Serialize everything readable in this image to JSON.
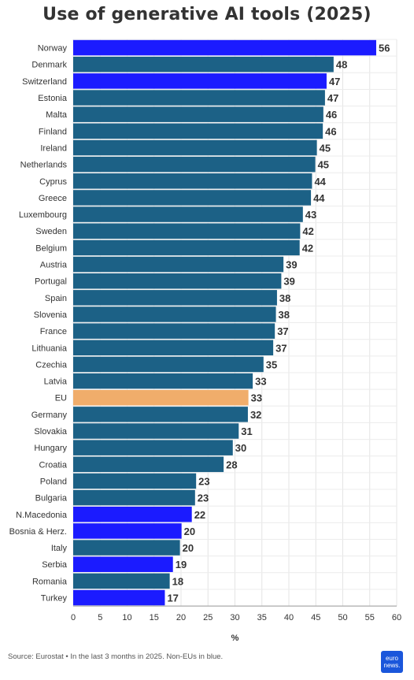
{
  "chart_data": {
    "type": "bar",
    "orientation": "horizontal",
    "title": "Use of generative AI tools (2025)",
    "xlabel": "%",
    "xlim": [
      0,
      60
    ],
    "xticks": [
      0,
      5,
      10,
      15,
      20,
      25,
      30,
      35,
      40,
      45,
      50,
      55,
      60
    ],
    "grid": true,
    "categories": [
      "Norway",
      "Denmark",
      "Switzerland",
      "Estonia",
      "Malta",
      "Finland",
      "Ireland",
      "Netherlands",
      "Cyprus",
      "Greece",
      "Luxembourg",
      "Sweden",
      "Belgium",
      "Austria",
      "Portugal",
      "Spain",
      "Slovenia",
      "France",
      "Lithuania",
      "Czechia",
      "Latvia",
      "EU",
      "Germany",
      "Slovakia",
      "Hungary",
      "Croatia",
      "Poland",
      "Bulgaria",
      "N.Macedonia",
      "Bosnia & Herz.",
      "Italy",
      "Serbia",
      "Romania",
      "Turkey"
    ],
    "values": [
      56.2,
      48.3,
      47.0,
      46.7,
      46.4,
      46.3,
      45.2,
      44.9,
      44.3,
      44.1,
      42.6,
      42.1,
      42.0,
      39.0,
      38.6,
      37.8,
      37.6,
      37.4,
      37.1,
      35.3,
      33.3,
      32.5,
      32.4,
      30.7,
      29.6,
      27.9,
      22.8,
      22.6,
      22.0,
      20.1,
      19.8,
      18.5,
      17.9,
      17.0
    ],
    "labels": [
      "56",
      "48",
      "47",
      "47",
      "46",
      "46",
      "45",
      "45",
      "44",
      "44",
      "43",
      "42",
      "42",
      "39",
      "39",
      "38",
      "38",
      "37",
      "37",
      "35",
      "33",
      "33",
      "32",
      "31",
      "30",
      "28",
      "23",
      "23",
      "22",
      "20",
      "20",
      "19",
      "18",
      "17"
    ],
    "colors": {
      "eu_member": "#1c6186",
      "non_eu": "#1b1bff",
      "eu_average": "#f0ad6b"
    },
    "bar_groups": [
      "non_eu",
      "eu_member",
      "non_eu",
      "eu_member",
      "eu_member",
      "eu_member",
      "eu_member",
      "eu_member",
      "eu_member",
      "eu_member",
      "eu_member",
      "eu_member",
      "eu_member",
      "eu_member",
      "eu_member",
      "eu_member",
      "eu_member",
      "eu_member",
      "eu_member",
      "eu_member",
      "eu_member",
      "eu_average",
      "eu_member",
      "eu_member",
      "eu_member",
      "eu_member",
      "eu_member",
      "eu_member",
      "non_eu",
      "non_eu",
      "eu_member",
      "non_eu",
      "eu_member",
      "non_eu"
    ]
  },
  "footer": {
    "source": "Source: Eurostat • In the last 3 months in 2025. Non-EUs in blue."
  },
  "logo": {
    "line1": "euro",
    "line2": "news."
  }
}
